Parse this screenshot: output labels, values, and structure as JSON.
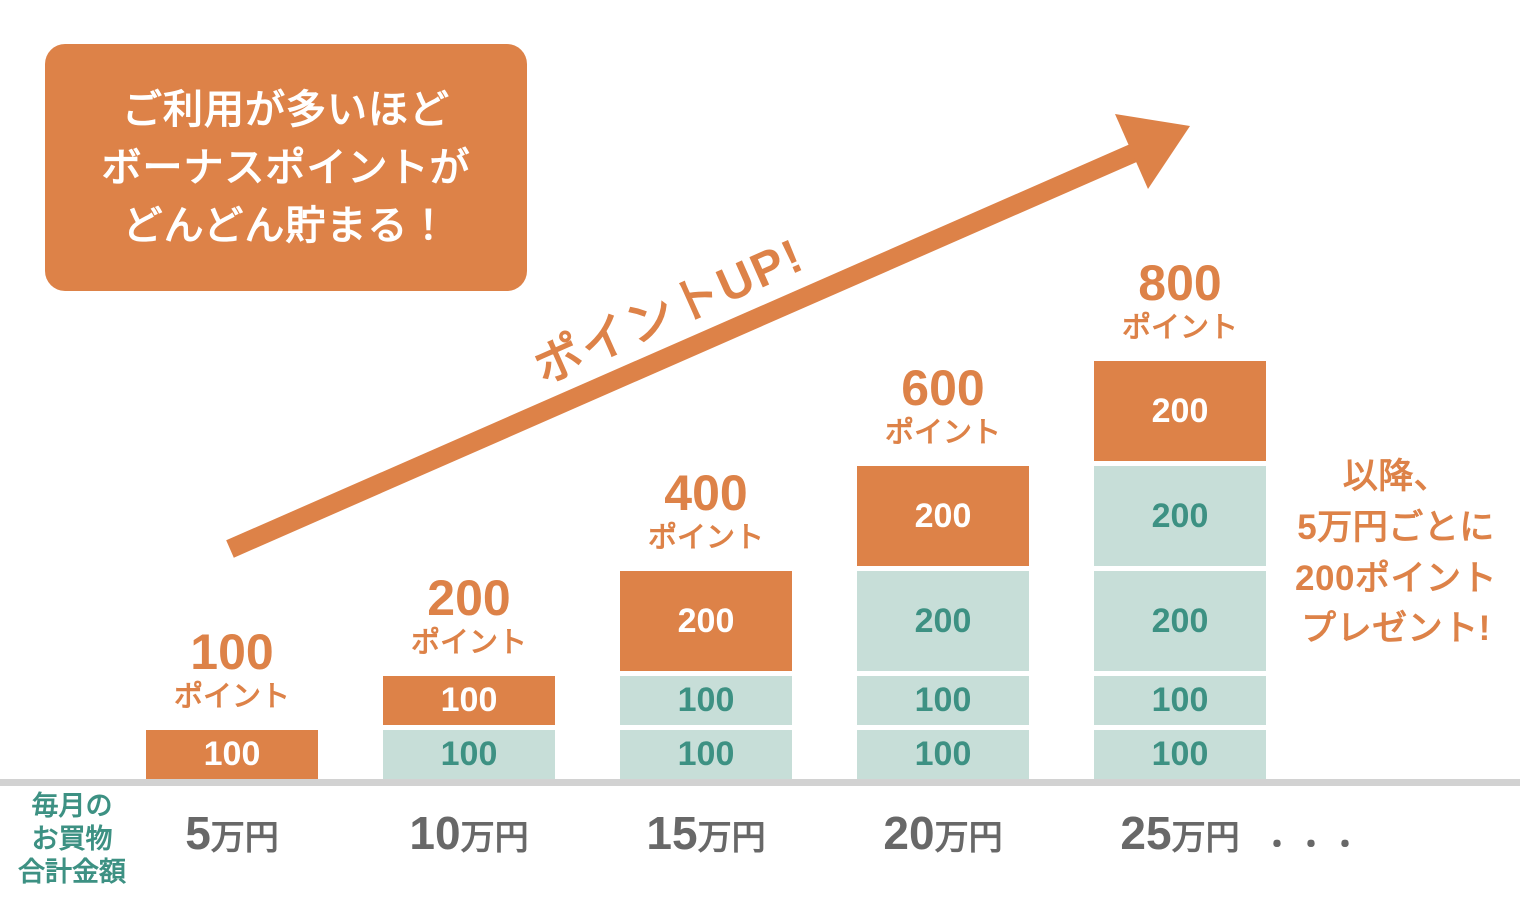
{
  "colors": {
    "orange": "#DD8248",
    "pale_green": "#C7DED8",
    "teal_text": "#3D9183",
    "axis_gray": "#686868",
    "baseline_gray": "#D2D2D2",
    "white": "#FFFFFF"
  },
  "callout": {
    "lines": [
      "ご利用が多いほど",
      "ボーナスポイントが",
      "どんどん貯まる！"
    ]
  },
  "arrow_label": "ポイントUP!",
  "side_note": {
    "lines": [
      "以降、",
      "5万円ごとに",
      "200ポイント",
      "プレゼント!"
    ]
  },
  "x_axis_title": {
    "lines": [
      "毎月の",
      "お買物",
      "合計金額"
    ]
  },
  "x_axis_ellipsis": "・・・",
  "chart_data": {
    "type": "bar",
    "stacked": true,
    "title": "ご利用が多いほどボーナスポイントがどんどん貯まる！",
    "xlabel": "毎月のお買物合計金額",
    "ylabel": "ボーナスポイント",
    "categories": [
      "5万円",
      "10万円",
      "15万円",
      "20万円",
      "25万円"
    ],
    "totals": [
      100,
      200,
      400,
      600,
      800
    ],
    "total_unit": "ポイント",
    "annotation": "以降、5万円ごとに200ポイントプレゼント!",
    "bars": [
      {
        "category_amount": "5",
        "category_unit": "万円",
        "total": 100,
        "segments_top_to_bottom": [
          {
            "value": 100,
            "type": "orange"
          }
        ]
      },
      {
        "category_amount": "10",
        "category_unit": "万円",
        "total": 200,
        "segments_top_to_bottom": [
          {
            "value": 100,
            "type": "orange"
          },
          {
            "value": 100,
            "type": "green"
          }
        ]
      },
      {
        "category_amount": "15",
        "category_unit": "万円",
        "total": 400,
        "segments_top_to_bottom": [
          {
            "value": 200,
            "type": "orange"
          },
          {
            "value": 100,
            "type": "green"
          },
          {
            "value": 100,
            "type": "green"
          }
        ]
      },
      {
        "category_amount": "20",
        "category_unit": "万円",
        "total": 600,
        "segments_top_to_bottom": [
          {
            "value": 200,
            "type": "orange"
          },
          {
            "value": 200,
            "type": "green"
          },
          {
            "value": 100,
            "type": "green"
          },
          {
            "value": 100,
            "type": "green"
          }
        ]
      },
      {
        "category_amount": "25",
        "category_unit": "万円",
        "total": 800,
        "segments_top_to_bottom": [
          {
            "value": 200,
            "type": "orange"
          },
          {
            "value": 200,
            "type": "green"
          },
          {
            "value": 200,
            "type": "green"
          },
          {
            "value": 100,
            "type": "green"
          },
          {
            "value": 100,
            "type": "green"
          }
        ]
      }
    ]
  }
}
